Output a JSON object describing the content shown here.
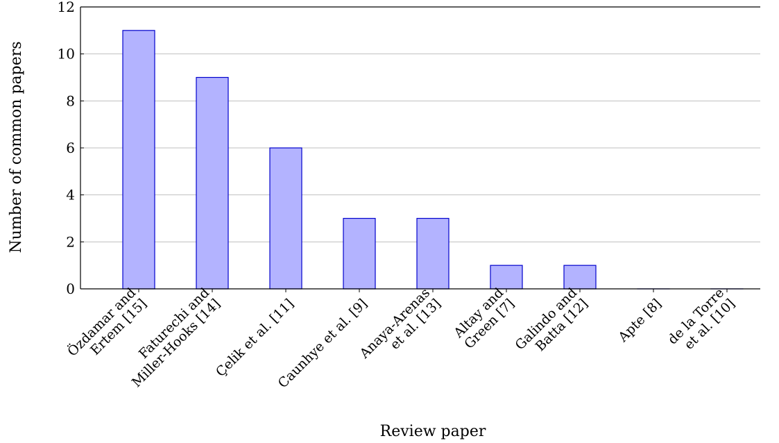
{
  "chart_data": {
    "type": "bar",
    "title": "",
    "xlabel": "Review paper",
    "ylabel": "Number of common papers",
    "ylim": [
      0,
      12
    ],
    "yticks": [
      0,
      2,
      4,
      6,
      8,
      10,
      12
    ],
    "grid": "horizontal",
    "categories": [
      [
        "Özdamar and",
        "Ertem [15]"
      ],
      [
        "Faturechi and",
        "Miller-Hooks [14]"
      ],
      [
        "Çelik et al. [11]"
      ],
      [
        "Caunhye et al. [9]"
      ],
      [
        "Anaya-Arenas",
        "et al. [13]"
      ],
      [
        "Altay and",
        "Green [7]"
      ],
      [
        "Galindo and",
        "Batta [12]"
      ],
      [
        "Apte [8]"
      ],
      [
        "de la Torre",
        "et al. [10]"
      ]
    ],
    "values": [
      11,
      9,
      6,
      3,
      3,
      1,
      1,
      0,
      0
    ],
    "colors": {
      "bar_fill": "#b3b3ff",
      "bar_stroke": "#0000cc",
      "grid": "#bfbfbf",
      "axis": "#000000"
    }
  }
}
